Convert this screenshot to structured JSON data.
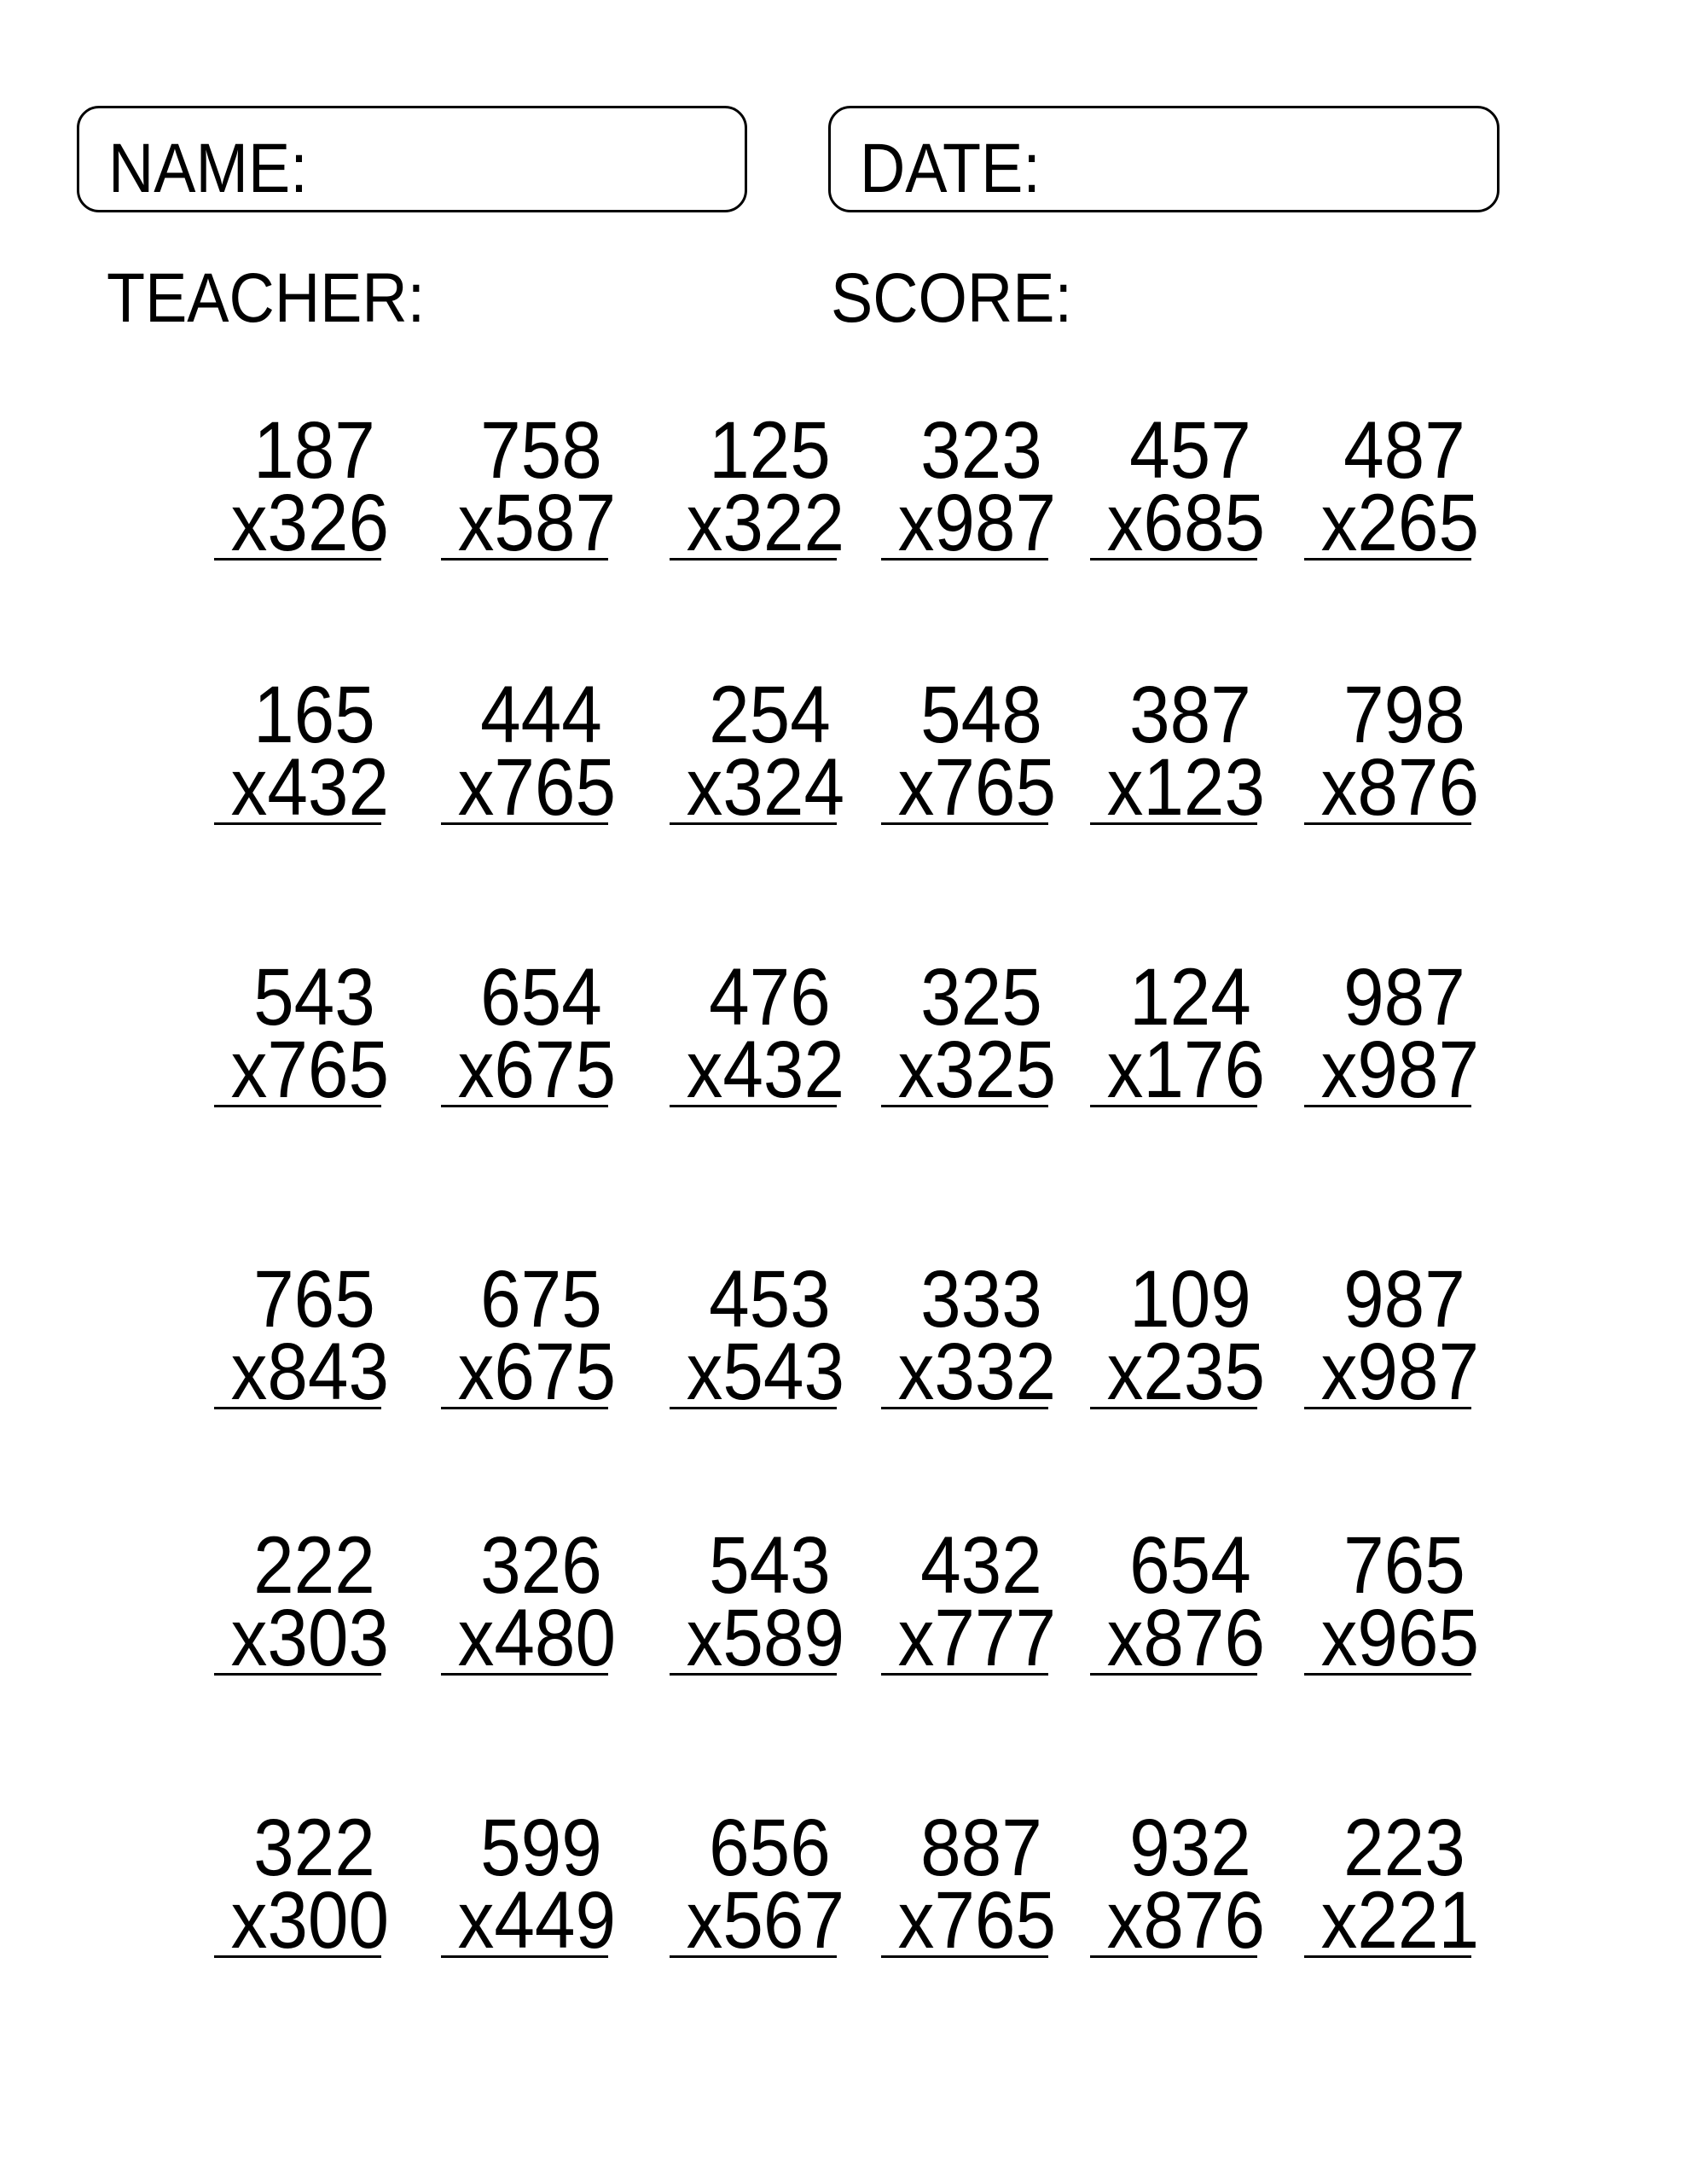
{
  "header": {
    "name_label": "NAME:",
    "date_label": "DATE:",
    "teacher_label": "TEACHER:",
    "score_label": "SCORE:"
  },
  "problems": [
    [
      {
        "top": "187",
        "bottom": "x326"
      },
      {
        "top": "758",
        "bottom": "x587"
      },
      {
        "top": "125",
        "bottom": "x322"
      },
      {
        "top": "323",
        "bottom": "x987"
      },
      {
        "top": "457",
        "bottom": "x685"
      },
      {
        "top": "487",
        "bottom": "x265"
      }
    ],
    [
      {
        "top": "165",
        "bottom": "x432"
      },
      {
        "top": "444",
        "bottom": "x765"
      },
      {
        "top": "254",
        "bottom": "x324"
      },
      {
        "top": "548",
        "bottom": "x765"
      },
      {
        "top": "387",
        "bottom": "x123"
      },
      {
        "top": "798",
        "bottom": "x876"
      }
    ],
    [
      {
        "top": "543",
        "bottom": "x765"
      },
      {
        "top": "654",
        "bottom": "x675"
      },
      {
        "top": "476",
        "bottom": "x432"
      },
      {
        "top": "325",
        "bottom": "x325"
      },
      {
        "top": "124",
        "bottom": "x176"
      },
      {
        "top": "987",
        "bottom": "x987"
      }
    ],
    [
      {
        "top": "765",
        "bottom": "x843"
      },
      {
        "top": "675",
        "bottom": "x675"
      },
      {
        "top": "453",
        "bottom": "x543"
      },
      {
        "top": "333",
        "bottom": "x332"
      },
      {
        "top": "109",
        "bottom": "x235"
      },
      {
        "top": "987",
        "bottom": "x987"
      }
    ],
    [
      {
        "top": "222",
        "bottom": "x303"
      },
      {
        "top": "326",
        "bottom": "x480"
      },
      {
        "top": "543",
        "bottom": "x589"
      },
      {
        "top": "432",
        "bottom": "x777"
      },
      {
        "top": "654",
        "bottom": "x876"
      },
      {
        "top": "765",
        "bottom": "x965"
      }
    ],
    [
      {
        "top": "322",
        "bottom": "x300"
      },
      {
        "top": "599",
        "bottom": "x449"
      },
      {
        "top": "656",
        "bottom": "x567"
      },
      {
        "top": "887",
        "bottom": "x765"
      },
      {
        "top": "932",
        "bottom": "x876"
      },
      {
        "top": "223",
        "bottom": "x221"
      }
    ]
  ]
}
